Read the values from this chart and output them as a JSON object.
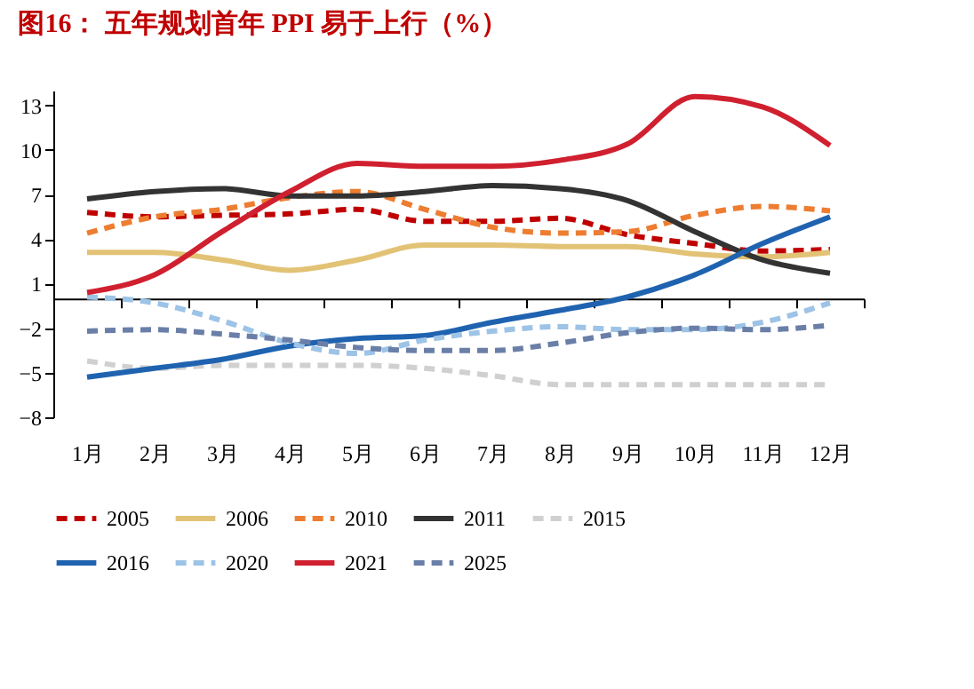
{
  "chart_data": {
    "type": "line",
    "title": "图16：  五年规划首年 PPI 易于上行（%）",
    "categories": [
      "1月",
      "2月",
      "3月",
      "4月",
      "5月",
      "6月",
      "7月",
      "8月",
      "9月",
      "10月",
      "11月",
      "12月"
    ],
    "ylim": [
      -8,
      14
    ],
    "yticks": [
      -8,
      -5,
      -2,
      1,
      4,
      7,
      10,
      13
    ],
    "grid": false,
    "legend": "bottom",
    "marker": "none",
    "series": [
      {
        "name": "2005",
        "color": "#c00000",
        "line_style": "dashed",
        "values": [
          5.8,
          5.5,
          5.6,
          5.7,
          6.0,
          5.2,
          5.2,
          5.4,
          4.3,
          3.7,
          3.2,
          3.3
        ]
      },
      {
        "name": "2006",
        "color": "#e2c275",
        "line_style": "solid",
        "values": [
          3.1,
          3.1,
          2.6,
          1.9,
          2.6,
          3.6,
          3.6,
          3.5,
          3.5,
          3.0,
          2.8,
          3.1
        ]
      },
      {
        "name": "2010",
        "color": "#ed7d31",
        "line_style": "dashed",
        "values": [
          4.4,
          5.5,
          6.0,
          6.8,
          7.2,
          6.0,
          4.8,
          4.4,
          4.5,
          5.6,
          6.2,
          5.9
        ]
      },
      {
        "name": "2011",
        "color": "#333333",
        "line_style": "solid",
        "values": [
          6.7,
          7.2,
          7.4,
          6.9,
          6.9,
          7.2,
          7.6,
          7.4,
          6.6,
          4.5,
          2.6,
          1.7
        ]
      },
      {
        "name": "2015",
        "color": "#d0d0d0",
        "line_style": "dashed",
        "values": [
          -4.2,
          -4.7,
          -4.5,
          -4.5,
          -4.5,
          -4.7,
          -5.2,
          -5.8,
          -5.8,
          -5.8,
          -5.8,
          -5.8
        ]
      },
      {
        "name": "2016",
        "color": "#1f63b0",
        "line_style": "solid",
        "values": [
          -5.3,
          -4.7,
          -4.1,
          -3.2,
          -2.7,
          -2.5,
          -1.6,
          -0.8,
          0.1,
          1.6,
          3.7,
          5.5
        ]
      },
      {
        "name": "2020",
        "color": "#9dc3e6",
        "line_style": "dashed",
        "values": [
          0.1,
          -0.3,
          -1.5,
          -3.0,
          -3.7,
          -2.8,
          -2.2,
          -1.9,
          -2.1,
          -2.1,
          -1.6,
          -0.3
        ]
      },
      {
        "name": "2021",
        "color": "#d0202f",
        "line_style": "solid",
        "values": [
          0.4,
          1.6,
          4.5,
          7.2,
          9.1,
          8.9,
          8.9,
          9.3,
          10.4,
          13.6,
          12.9,
          10.3
        ]
      },
      {
        "name": "2025",
        "color": "#6a7fa8",
        "line_style": "dashed",
        "values": [
          -2.2,
          -2.1,
          -2.4,
          -2.8,
          -3.3,
          -3.5,
          -3.5,
          -3.0,
          -2.3,
          -2.0,
          -2.1,
          -1.8
        ]
      }
    ]
  }
}
